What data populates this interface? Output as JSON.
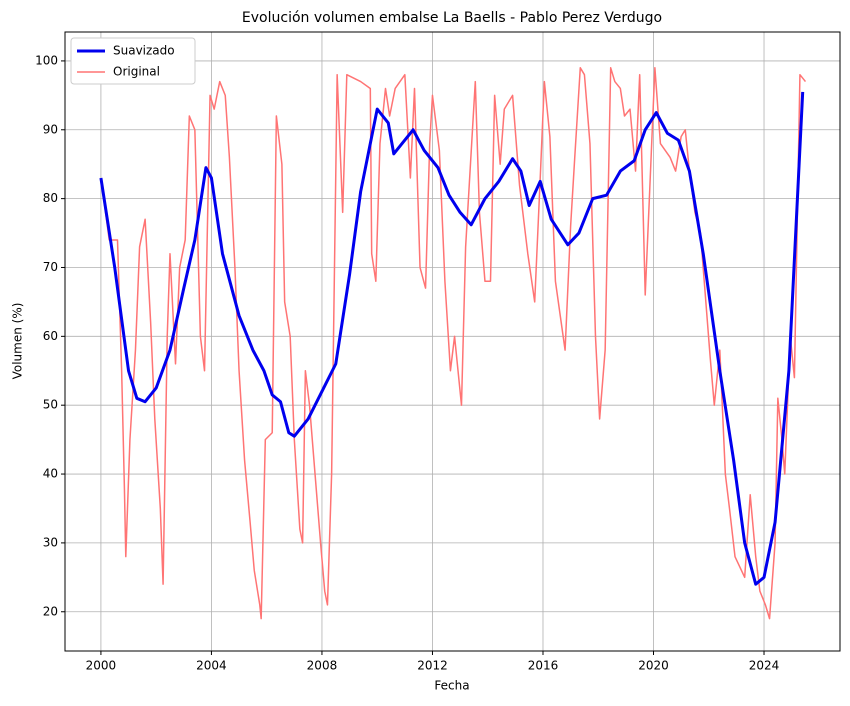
{
  "chart_data": {
    "type": "line",
    "title": "Evolución volumen embalse La Baells - Pablo Perez Verdugo",
    "x_label": "Fecha",
    "y_label": "Volumen (%)",
    "xlim": [
      1998.7,
      2026.75
    ],
    "ylim": [
      14.3,
      104.2
    ],
    "xticks": [
      2000,
      2004,
      2008,
      2012,
      2016,
      2020,
      2024
    ],
    "yticks": [
      20,
      30,
      40,
      50,
      60,
      70,
      80,
      90,
      100
    ],
    "grid": true,
    "legend": "upper-left",
    "series": [
      {
        "name": "Suavizado",
        "color": "#0000ee",
        "x": [
          2000.0,
          2000.5,
          2001.0,
          2001.3,
          2001.6,
          2002.0,
          2002.5,
          2003.0,
          2003.4,
          2003.8,
          2004.0,
          2004.4,
          2005.0,
          2005.5,
          2005.9,
          2006.2,
          2006.5,
          2006.8,
          2007.0,
          2007.5,
          2008.0,
          2008.5,
          2009.0,
          2009.4,
          2009.7,
          2010.0,
          2010.4,
          2010.6,
          2011.0,
          2011.3,
          2011.7,
          2012.2,
          2012.6,
          2013.0,
          2013.4,
          2013.9,
          2014.4,
          2014.9,
          2015.2,
          2015.5,
          2015.9,
          2016.3,
          2016.9,
          2017.3,
          2017.8,
          2018.3,
          2018.8,
          2019.3,
          2019.7,
          2020.1,
          2020.5,
          2020.9,
          2021.3,
          2021.8,
          2022.4,
          2022.9,
          2023.3,
          2023.7,
          2024.0,
          2024.4,
          2024.9,
          2025.4
        ],
        "values": [
          83,
          70,
          55,
          51,
          50.5,
          52.5,
          58,
          67,
          74,
          84.5,
          83,
          72,
          63,
          58,
          55,
          51.5,
          50.5,
          46,
          45.5,
          48,
          52,
          56,
          69,
          81,
          87,
          93,
          91,
          86.5,
          88.5,
          90,
          87,
          84.5,
          80.5,
          78,
          76.2,
          80,
          82.5,
          85.8,
          84,
          79,
          82.5,
          77,
          73.3,
          75,
          80,
          80.5,
          84,
          85.5,
          90,
          92.5,
          89.5,
          88.5,
          84,
          72,
          55,
          42,
          30,
          24,
          25,
          33,
          55,
          95.5
        ]
      },
      {
        "name": "Original",
        "color": "#ff7474",
        "x": [
          2000.0,
          2000.3,
          2000.6,
          2000.75,
          2000.85,
          2000.9,
          2001.05,
          2001.25,
          2001.4,
          2001.6,
          2001.8,
          2001.95,
          2002.15,
          2002.25,
          2002.4,
          2002.5,
          2002.7,
          2002.85,
          2003.05,
          2003.2,
          2003.4,
          2003.6,
          2003.75,
          2003.95,
          2004.1,
          2004.3,
          2004.5,
          2004.65,
          2004.85,
          2005.0,
          2005.2,
          2005.4,
          2005.55,
          2005.75,
          2005.8,
          2005.95,
          2006.2,
          2006.35,
          2006.55,
          2006.65,
          2006.85,
          2007.0,
          2007.2,
          2007.3,
          2007.4,
          2007.55,
          2007.75,
          2007.95,
          2008.1,
          2008.2,
          2008.35,
          2008.55,
          2008.75,
          2008.9,
          2009.4,
          2009.75,
          2009.8,
          2009.95,
          2010.1,
          2010.3,
          2010.45,
          2010.65,
          2011.0,
          2011.2,
          2011.35,
          2011.55,
          2011.75,
          2011.9,
          2012.0,
          2012.25,
          2012.45,
          2012.65,
          2012.8,
          2013.05,
          2013.2,
          2013.55,
          2013.7,
          2013.9,
          2014.1,
          2014.25,
          2014.45,
          2014.6,
          2014.9,
          2015.15,
          2015.45,
          2015.7,
          2015.9,
          2016.05,
          2016.25,
          2016.45,
          2016.8,
          2017.0,
          2017.15,
          2017.35,
          2017.5,
          2017.7,
          2017.9,
          2018.05,
          2018.25,
          2018.45,
          2018.6,
          2018.8,
          2018.95,
          2019.15,
          2019.35,
          2019.5,
          2019.7,
          2019.85,
          2020.05,
          2020.25,
          2020.6,
          2020.8,
          2021.0,
          2021.15,
          2021.3,
          2021.5,
          2021.7,
          2022.05,
          2022.2,
          2022.4,
          2022.6,
          2022.75,
          2022.95,
          2023.3,
          2023.5,
          2023.7,
          2023.85,
          2024.05,
          2024.2,
          2024.4,
          2024.5,
          2024.65,
          2024.75,
          2024.95,
          2025.1,
          2025.3,
          2025.5
        ],
        "values": [
          83,
          74,
          74,
          55,
          38,
          28,
          45,
          58,
          73,
          77,
          62,
          48,
          35,
          24,
          60,
          72,
          56,
          70,
          74,
          92,
          90,
          60,
          55,
          95,
          93,
          97,
          95,
          86,
          70,
          55,
          42,
          33,
          26,
          21,
          19,
          45,
          46,
          92,
          85,
          65,
          60,
          45,
          32,
          30,
          55,
          50,
          40,
          30,
          23,
          21,
          40,
          98,
          78,
          98,
          97,
          96,
          72,
          68,
          88,
          96,
          92,
          96,
          98,
          83,
          96,
          70,
          67,
          88,
          95,
          87,
          68,
          55,
          60,
          50,
          73,
          97,
          78,
          68,
          68,
          95,
          85,
          93,
          95,
          82,
          72,
          65,
          83,
          97,
          89,
          68,
          58,
          76,
          86,
          99,
          98,
          88,
          60,
          48,
          58,
          99,
          97,
          96,
          92,
          93,
          84,
          98,
          66,
          80,
          99,
          88,
          86,
          84,
          89,
          90,
          84,
          78,
          75,
          57,
          50,
          58,
          40,
          35,
          28,
          25,
          37,
          28,
          23,
          21,
          19,
          30,
          51,
          45,
          40,
          60,
          54,
          98,
          97
        ]
      }
    ]
  }
}
